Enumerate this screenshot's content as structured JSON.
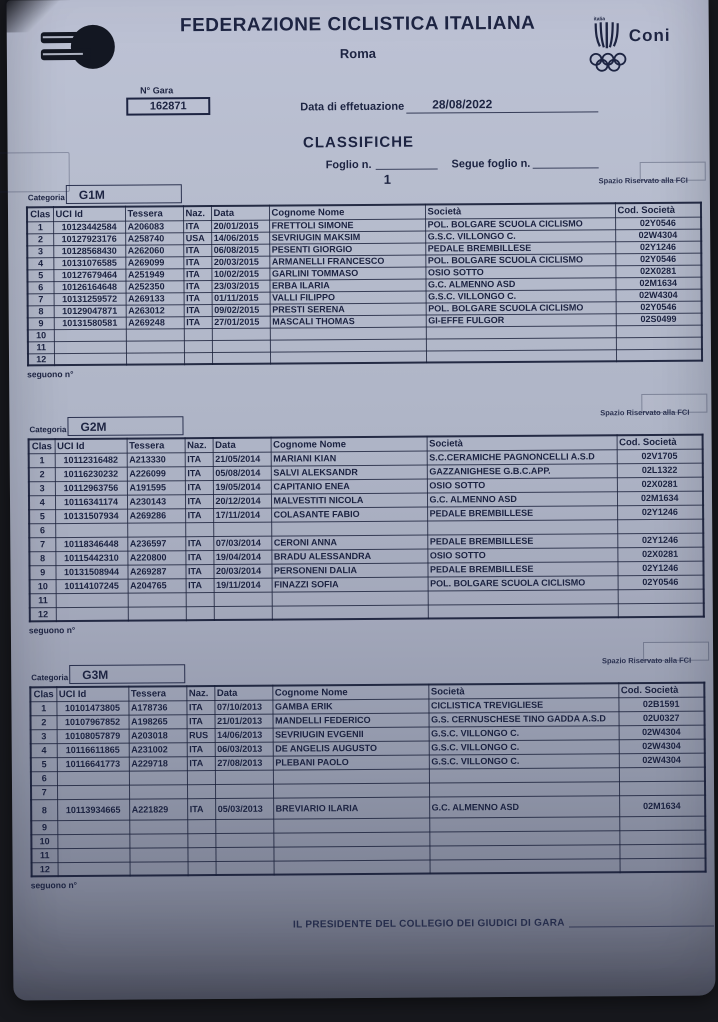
{
  "header": {
    "title": "FEDERAZIONE CICLISTICA ITALIANA",
    "subtitle": "Roma",
    "coni_label": "Coni",
    "coni_italia": "italia"
  },
  "meta": {
    "gara_label": "N° Gara",
    "gara_number": "162871",
    "date_label": "Data di effetuazione",
    "date_value": "28/08/2022"
  },
  "section": {
    "title": "CLASSIFICHE",
    "foglio_label": "Foglio n.",
    "segue_label": "Segue foglio n.",
    "foglio_value": "1",
    "spazio_label": "Spazio Riservato alla FCI",
    "categoria_label": "Categoria",
    "seguono_label": "seguono n°"
  },
  "columns": [
    "Clas",
    "UCI Id",
    "Tessera",
    "Naz.",
    "Data",
    "Cognome Nome",
    "Società",
    "Cod. Società"
  ],
  "tables": [
    {
      "category": "G1M",
      "rows": [
        [
          "1",
          "10123442584",
          "A206083",
          "ITA",
          "20/01/2015",
          "FRETTOLI SIMONE",
          "POL. BOLGARE SCUOLA CICLISMO",
          "02Y0546"
        ],
        [
          "2",
          "10127923176",
          "A258740",
          "USA",
          "14/06/2015",
          "SEVRIUGIN MAKSIM",
          "G.S.C. VILLONGO C.",
          "02W4304"
        ],
        [
          "3",
          "10128568430",
          "A262060",
          "ITA",
          "06/08/2015",
          "PESENTI GIORGIO",
          "PEDALE BREMBILLESE",
          "02Y1246"
        ],
        [
          "4",
          "10131076585",
          "A269099",
          "ITA",
          "20/03/2015",
          "ARMANELLI FRANCESCO",
          "POL. BOLGARE SCUOLA CICLISMO",
          "02Y0546"
        ],
        [
          "5",
          "10127679464",
          "A251949",
          "ITA",
          "10/02/2015",
          "GARLINI TOMMASO",
          "OSIO SOTTO",
          "02X0281"
        ],
        [
          "6",
          "10126164648",
          "A252350",
          "ITA",
          "23/03/2015",
          "ERBA ILARIA",
          "G.C. ALMENNO ASD",
          "02M1634"
        ],
        [
          "7",
          "10131259572",
          "A269133",
          "ITA",
          "01/11/2015",
          "VALLI FILIPPO",
          "G.S.C. VILLONGO C.",
          "02W4304"
        ],
        [
          "8",
          "10129047871",
          "A263012",
          "ITA",
          "09/02/2015",
          "PRESTI SERENA",
          "POL. BOLGARE SCUOLA CICLISMO",
          "02Y0546"
        ],
        [
          "9",
          "10131580581",
          "A269248",
          "ITA",
          "27/01/2015",
          "MASCALI THOMAS",
          "GI-EFFE FULGOR",
          "02S0499"
        ],
        [
          "10",
          "",
          "",
          "",
          "",
          "",
          "",
          ""
        ],
        [
          "11",
          "",
          "",
          "",
          "",
          "",
          "",
          ""
        ],
        [
          "12",
          "",
          "",
          "",
          "",
          "",
          "",
          ""
        ]
      ]
    },
    {
      "category": "G2M",
      "rows": [
        [
          "1",
          "10112316482",
          "A213330",
          "ITA",
          "21/05/2014",
          "MARIANI KIAN",
          "S.C.CERAMICHE PAGNONCELLI A.S.D",
          "02V1705"
        ],
        [
          "2",
          "10116230232",
          "A226099",
          "ITA",
          "05/08/2014",
          "SALVI ALEKSANDR",
          "GAZZANIGHESE G.B.C.APP.",
          "02L1322"
        ],
        [
          "3",
          "10112963756",
          "A191595",
          "ITA",
          "19/05/2014",
          "CAPITANIO ENEA",
          "OSIO SOTTO",
          "02X0281"
        ],
        [
          "4",
          "10116341174",
          "A230143",
          "ITA",
          "20/12/2014",
          "MALVESTITI NICOLA",
          "G.C. ALMENNO ASD",
          "02M1634"
        ],
        [
          "5",
          "10131507934",
          "A269286",
          "ITA",
          "17/11/2014",
          "COLASANTE FABIO",
          "PEDALE BREMBILLESE",
          "02Y1246"
        ],
        [
          "6",
          "",
          "",
          "",
          "",
          "",
          "",
          ""
        ],
        [
          "7",
          "10118346448",
          "A236597",
          "ITA",
          "07/03/2014",
          "CERONI ANNA",
          "PEDALE BREMBILLESE",
          "02Y1246"
        ],
        [
          "8",
          "10115442310",
          "A220800",
          "ITA",
          "19/04/2014",
          "BRADU ALESSANDRA",
          "OSIO SOTTO",
          "02X0281"
        ],
        [
          "9",
          "10131508944",
          "A269287",
          "ITA",
          "20/03/2014",
          "PERSONENI DALIA",
          "PEDALE BREMBILLESE",
          "02Y1246"
        ],
        [
          "10",
          "10114107245",
          "A204765",
          "ITA",
          "19/11/2014",
          "FINAZZI SOFIA",
          "POL. BOLGARE SCUOLA CICLISMO",
          "02Y0546"
        ],
        [
          "11",
          "",
          "",
          "",
          "",
          "",
          "",
          ""
        ],
        [
          "12",
          "",
          "",
          "",
          "",
          "",
          "",
          ""
        ]
      ]
    },
    {
      "category": "G3M",
      "rows": [
        [
          "1",
          "10101473805",
          "A178736",
          "ITA",
          "07/10/2013",
          "GAMBA ERIK",
          "CICLISTICA TREVIGLIESE",
          "02B1591"
        ],
        [
          "2",
          "10107967852",
          "A198265",
          "ITA",
          "21/01/2013",
          "MANDELLI FEDERICO",
          "G.S. CERNUSCHESE TINO GADDA A.S.D",
          "02U0327"
        ],
        [
          "3",
          "10108057879",
          "A203018",
          "RUS",
          "14/06/2013",
          "SEVRIUGIN EVGENII",
          "G.S.C. VILLONGO C.",
          "02W4304"
        ],
        [
          "4",
          "10116611865",
          "A231002",
          "ITA",
          "06/03/2013",
          "DE ANGELIS AUGUSTO",
          "G.S.C. VILLONGO C.",
          "02W4304"
        ],
        [
          "5",
          "10116641773",
          "A229718",
          "ITA",
          "27/08/2013",
          "PLEBANI PAOLO",
          "G.S.C. VILLONGO C.",
          "02W4304"
        ],
        [
          "6",
          "",
          "",
          "",
          "",
          "",
          "",
          ""
        ],
        [
          "7",
          "",
          "",
          "",
          "",
          "",
          "",
          ""
        ],
        [
          "8",
          "10113934665",
          "A221829",
          "ITA",
          "05/03/2013",
          "BREVIARIO ILARIA",
          "G.C. ALMENNO ASD",
          "02M1634"
        ],
        [
          "9",
          "",
          "",
          "",
          "",
          "",
          "",
          ""
        ],
        [
          "10",
          "",
          "",
          "",
          "",
          "",
          "",
          ""
        ],
        [
          "11",
          "",
          "",
          "",
          "",
          "",
          "",
          ""
        ],
        [
          "12",
          "",
          "",
          "",
          "",
          "",
          "",
          ""
        ]
      ]
    }
  ],
  "footer": {
    "president_label": "IL PRESIDENTE DEL COLLEGIO DEI GIUDICI DI GARA"
  }
}
